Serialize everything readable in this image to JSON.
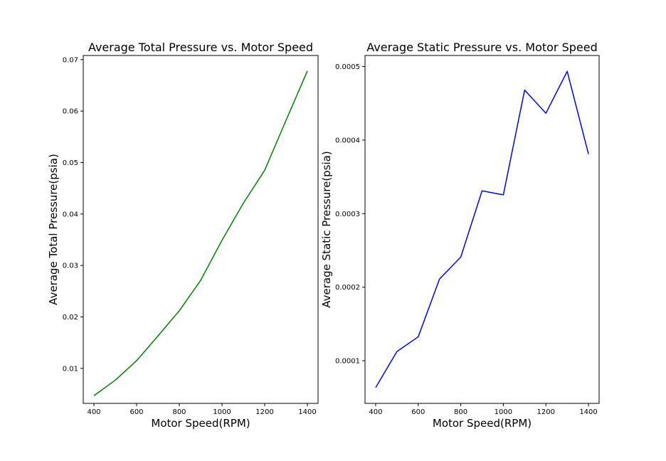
{
  "chart_data": [
    {
      "type": "line",
      "title": "Average Total Pressure vs. Motor Speed",
      "xlabel": "Motor Speed(RPM)",
      "ylabel": "Average Total Pressure(psia)",
      "xlim": [
        350,
        1450
      ],
      "ylim": [
        0.0032,
        0.0708
      ],
      "xticks": [
        400,
        600,
        800,
        1000,
        1200,
        1400
      ],
      "xtick_labels": [
        "400",
        "600",
        "800",
        "1000",
        "1200",
        "1400"
      ],
      "yticks": [
        0.01,
        0.02,
        0.03,
        0.04,
        0.05,
        0.06,
        0.07
      ],
      "ytick_labels": [
        "0.01",
        "0.02",
        "0.03",
        "0.04",
        "0.05",
        "0.06",
        "0.07"
      ],
      "grid": false,
      "series": [
        {
          "color": "#008000",
          "x": [
            400,
            500,
            600,
            700,
            800,
            900,
            1000,
            1100,
            1200,
            1300,
            1400
          ],
          "y": [
            0.0047,
            0.0077,
            0.0115,
            0.0163,
            0.0212,
            0.0271,
            0.0349,
            0.0421,
            0.0485,
            0.0582,
            0.0678
          ]
        }
      ]
    },
    {
      "type": "line",
      "title": "Average Static Pressure vs. Motor Speed",
      "xlabel": "Motor Speed(RPM)",
      "ylabel": "Average Static Pressure(psia)",
      "xlim": [
        350,
        1450
      ],
      "ylim": [
        4.2e-05,
        0.000515
      ],
      "xticks": [
        400,
        600,
        800,
        1000,
        1200,
        1400
      ],
      "xtick_labels": [
        "400",
        "600",
        "800",
        "1000",
        "1200",
        "1400"
      ],
      "yticks": [
        0.0001,
        0.0002,
        0.0003,
        0.0004,
        0.0005
      ],
      "ytick_labels": [
        "0.0001",
        "0.0002",
        "0.0003",
        "0.0004",
        "0.0005"
      ],
      "grid": false,
      "series": [
        {
          "color": "#0000ff",
          "x": [
            400,
            500,
            600,
            700,
            800,
            900,
            1000,
            1100,
            1200,
            1300,
            1400
          ],
          "y": [
            6.35e-05,
            0.0001125,
            0.0001325,
            0.000211,
            0.000241,
            0.000331,
            0.0003255,
            0.000468,
            0.0004365,
            0.0004935,
            0.000381
          ]
        }
      ]
    }
  ]
}
